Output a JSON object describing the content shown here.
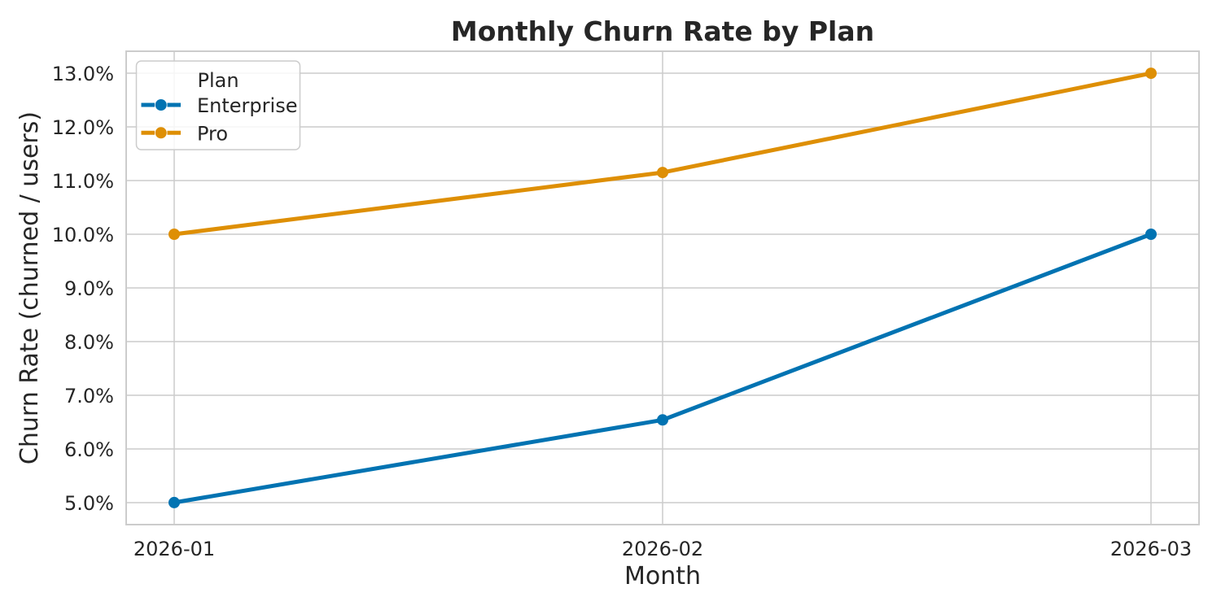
{
  "chart_data": {
    "type": "line",
    "title": "Monthly Churn Rate by Plan",
    "xlabel": "Month",
    "ylabel": "Churn Rate (churned / users)",
    "categories": [
      "2026-01",
      "2026-02",
      "2026-03"
    ],
    "series": [
      {
        "name": "Enterprise",
        "color": "#0173b2",
        "values": [
          5.0,
          6.54,
          10.0
        ]
      },
      {
        "name": "Pro",
        "color": "#de8f05",
        "values": [
          10.0,
          11.15,
          13.0
        ]
      }
    ],
    "ytick_values": [
      5,
      6,
      7,
      8,
      9,
      10,
      11,
      12,
      13
    ],
    "ytick_labels": [
      "5.0%",
      "6.0%",
      "7.0%",
      "8.0%",
      "9.0%",
      "10.0%",
      "11.0%",
      "12.0%",
      "13.0%"
    ],
    "ylim": [
      4.59,
      13.41
    ],
    "grid": true,
    "legend": {
      "title": "Plan",
      "position": "upper-left"
    },
    "colors": {
      "text": "#262626",
      "grid": "#cccccc",
      "spine": "#cccccc",
      "background": "#ffffff"
    }
  }
}
